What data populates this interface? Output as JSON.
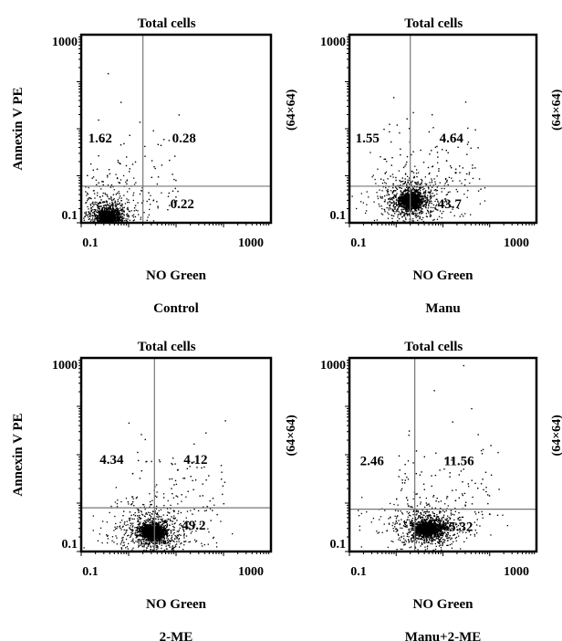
{
  "chart_data": [
    {
      "type": "scatter",
      "title": "Total cells",
      "caption": "Control",
      "xlabel": "NO Green",
      "ylabel": "Annexin V PE",
      "side_label": "(64×64)",
      "scale": "log",
      "xlim": [
        0.1,
        1000
      ],
      "ylim": [
        0.1,
        1000
      ],
      "x_tick_labels": [
        "0.1",
        "1000"
      ],
      "y_tick_labels": [
        "1000",
        "0.1"
      ],
      "quadrant_gates": {
        "x": 2.0,
        "y": 0.6
      },
      "quadrant_percentages": {
        "upper_left": "1.62",
        "upper_right": "0.28",
        "lower_right": "0.22"
      },
      "population_center": {
        "x": 0.36,
        "y": 0.13
      },
      "population_spread": {
        "x": 0.2,
        "y": 0.17
      }
    },
    {
      "type": "scatter",
      "title": "Total cells",
      "caption": "Manu",
      "xlabel": "NO Green",
      "ylabel": "",
      "side_label": "(64×64)",
      "scale": "log",
      "xlim": [
        0.1,
        1000
      ],
      "ylim": [
        0.1,
        1000
      ],
      "x_tick_labels": [
        "0.1",
        "1000"
      ],
      "y_tick_labels": [
        "1000",
        "0.1"
      ],
      "quadrant_gates": {
        "x": 2.0,
        "y": 0.6
      },
      "quadrant_percentages": {
        "upper_left": "1.55",
        "upper_right": "4.64",
        "lower_right": "43.7"
      },
      "population_center": {
        "x": 2.0,
        "y": 0.3
      },
      "population_spread": {
        "x": 0.22,
        "y": 0.16
      }
    },
    {
      "type": "scatter",
      "title": "Total cells",
      "caption": "2-ME",
      "xlabel": "NO Green",
      "ylabel": "Annexin V PE",
      "side_label": "(64×64)",
      "scale": "log",
      "xlim": [
        0.1,
        1000
      ],
      "ylim": [
        0.1,
        1000
      ],
      "x_tick_labels": [
        "0.1",
        "1000"
      ],
      "y_tick_labels": [
        "1000",
        "0.1"
      ],
      "quadrant_gates": {
        "x": 3.5,
        "y": 0.8
      },
      "quadrant_percentages": {
        "upper_left": "4.34",
        "upper_right": "4.12",
        "lower_right": "49.2"
      },
      "population_center": {
        "x": 3.2,
        "y": 0.25
      },
      "population_spread": {
        "x": 0.24,
        "y": 0.17
      }
    },
    {
      "type": "scatter",
      "title": "Total cells",
      "caption": "Manu+2-ME",
      "xlabel": "NO Green",
      "ylabel": "",
      "side_label": "(64×64)",
      "scale": "log",
      "xlim": [
        0.1,
        1000
      ],
      "ylim": [
        0.1,
        1000
      ],
      "x_tick_labels": [
        "0.1",
        "1000"
      ],
      "y_tick_labels": [
        "1000",
        "0.1"
      ],
      "quadrant_gates": {
        "x": 2.5,
        "y": 0.75
      },
      "quadrant_percentages": {
        "upper_left": "2.46",
        "upper_right": "11.56",
        "lower_right": "65.32"
      },
      "population_center": {
        "x": 4.5,
        "y": 0.3
      },
      "population_spread": {
        "x": 0.25,
        "y": 0.15
      }
    }
  ]
}
